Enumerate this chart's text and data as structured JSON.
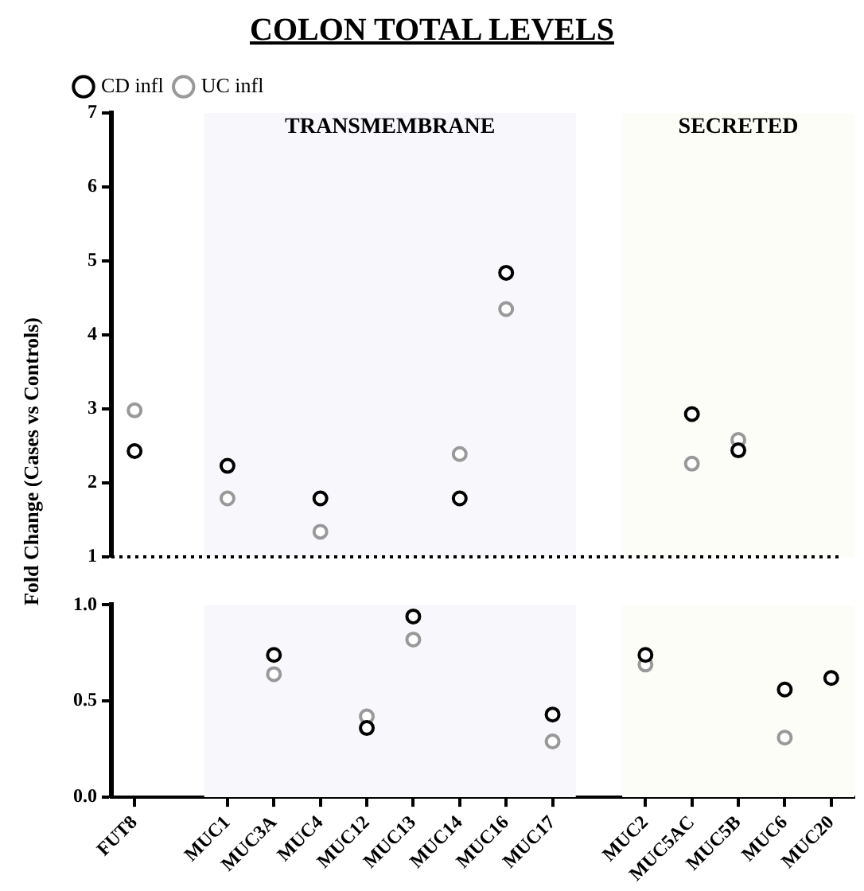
{
  "chart_data": [
    {
      "type": "scatter",
      "title": "COLON TOTAL LEVELS",
      "ylabel": "Fold Change (Cases vs Controls)",
      "categories": [
        "FUT8",
        null,
        "MUC1",
        "MUC3A",
        "MUC4",
        "MUC12",
        "MUC13",
        "MUC14",
        "MUC16",
        "MUC17",
        null,
        "MUC2",
        "MUC5AC",
        "MUC5B",
        "MUC6",
        "MUC20"
      ],
      "series": [
        {
          "name": "CD infl",
          "color": "#000000",
          "values": [
            2.43,
            null,
            2.23,
            null,
            1.79,
            null,
            null,
            1.79,
            4.84,
            null,
            null,
            null,
            2.93,
            2.44,
            null,
            null
          ]
        },
        {
          "name": "UC infl",
          "color": "#999999",
          "values": [
            2.98,
            null,
            1.79,
            null,
            1.34,
            null,
            null,
            2.39,
            4.35,
            null,
            null,
            null,
            2.26,
            2.58,
            null,
            null
          ]
        }
      ],
      "ylim": [
        1,
        7
      ],
      "yticks": [
        1,
        2,
        3,
        4,
        5,
        6,
        7
      ],
      "tick_labels": "y",
      "legend": "top left",
      "marker": "circle",
      "bands": [
        {
          "axis": "x",
          "from": "MUC1",
          "to": "MUC17",
          "label": "TRANSMEMBRANE",
          "color": "#f7f7fc"
        },
        {
          "axis": "x",
          "from": "MUC2",
          "to": "MUC20",
          "label": "SECRETED",
          "color": "#fdfdf7"
        }
      ],
      "ref_lines": [
        {
          "axis": "y",
          "value": 1,
          "line_style": "dotted",
          "color": "#000000"
        }
      ]
    },
    {
      "type": "scatter",
      "categories": [
        "FUT8",
        null,
        "MUC1",
        "MUC3A",
        "MUC4",
        "MUC12",
        "MUC13",
        "MUC14",
        "MUC16",
        "MUC17",
        null,
        "MUC2",
        "MUC5AC",
        "MUC5B",
        "MUC6",
        "MUC20"
      ],
      "series": [
        {
          "color": "#000000",
          "values": [
            null,
            null,
            null,
            0.74,
            null,
            0.36,
            0.94,
            null,
            null,
            0.43,
            null,
            0.74,
            null,
            null,
            0.56,
            0.62
          ]
        },
        {
          "color": "#999999",
          "values": [
            null,
            null,
            null,
            0.64,
            null,
            0.42,
            0.82,
            null,
            null,
            0.29,
            null,
            0.69,
            null,
            null,
            0.31,
            null
          ]
        }
      ],
      "ylim": [
        0,
        1
      ],
      "yticks": [
        {
          "value": 0,
          "label": "0.0"
        },
        {
          "value": 0.5,
          "label": "0.5"
        },
        {
          "value": 1,
          "label": "1.0"
        }
      ],
      "marker": "circle",
      "bands": [
        {
          "axis": "x",
          "from": "MUC1",
          "to": "MUC17",
          "color": "#f7f7fc"
        },
        {
          "axis": "x",
          "from": "MUC2",
          "to": "MUC20",
          "color": "#fdfdf7"
        }
      ]
    }
  ]
}
